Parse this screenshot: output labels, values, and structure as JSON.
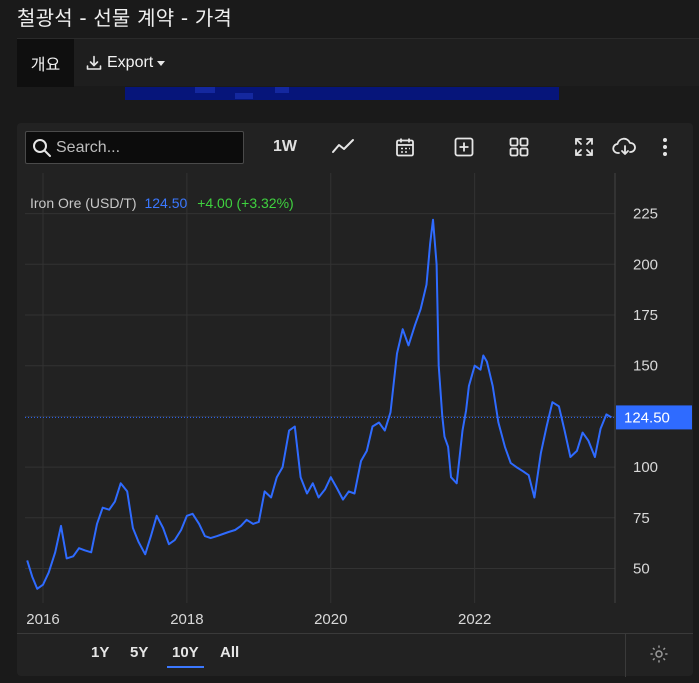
{
  "page": {
    "title": "철광석 - 선물 계약 - 가격"
  },
  "tabs": {
    "overview": "개요",
    "export": "Export"
  },
  "toolbar": {
    "search_placeholder": "Search...",
    "interval": "1W",
    "icons": [
      "search-icon",
      "line-chart-icon",
      "calendar-icon",
      "add-box-icon",
      "grid-icon",
      "fullscreen-icon",
      "cloud-download-icon",
      "more-vertical-icon"
    ]
  },
  "legend": {
    "name": "Iron Ore (USD/T)",
    "last": "124.50",
    "change": "+4.00 (+3.32%)"
  },
  "ranges": [
    "1Y",
    "5Y",
    "10Y",
    "All"
  ],
  "active_range": "10Y",
  "colors": {
    "line": "#2f6bff",
    "last_label_bg": "#2f6bff",
    "positive": "#3fd23f",
    "panel": "#222222"
  },
  "chart_data": {
    "type": "line",
    "title": "",
    "xlabel": "",
    "ylabel": "",
    "y_ticks": [
      "225",
      "200",
      "175",
      "150",
      "125",
      "100",
      "75",
      "50"
    ],
    "x_ticks": [
      "2016",
      "2018",
      "2020",
      "2022"
    ],
    "ylim": [
      33,
      245
    ],
    "xlim": [
      2015.75,
      2023.95
    ],
    "last_value_label": "124.50",
    "last_value": 124.5,
    "y_axis_position": "right",
    "grid": true,
    "series": [
      {
        "x": [
          2015.78,
          2015.85,
          2015.92,
          2016.0,
          2016.08,
          2016.17,
          2016.25,
          2016.33,
          2016.42,
          2016.5,
          2016.58,
          2016.67,
          2016.75,
          2016.83,
          2016.92,
          2017.0,
          2017.08,
          2017.17,
          2017.25,
          2017.33,
          2017.42,
          2017.5,
          2017.58,
          2017.67,
          2017.75,
          2017.83,
          2017.92,
          2018.0,
          2018.08,
          2018.17,
          2018.25,
          2018.33,
          2018.42,
          2018.5,
          2018.58,
          2018.67,
          2018.75,
          2018.83,
          2018.92,
          2019.0,
          2019.08,
          2019.17,
          2019.25,
          2019.33,
          2019.42,
          2019.5,
          2019.58,
          2019.67,
          2019.75,
          2019.83,
          2019.92,
          2020.0,
          2020.08,
          2020.17,
          2020.25,
          2020.33,
          2020.42,
          2020.5,
          2020.58,
          2020.67,
          2020.75,
          2020.83,
          2020.92,
          2021.0,
          2021.08,
          2021.17,
          2021.25,
          2021.33,
          2021.38,
          2021.42,
          2021.47,
          2021.5,
          2021.55,
          2021.58,
          2021.63,
          2021.67,
          2021.75,
          2021.83,
          2021.88,
          2021.92,
          2022.0,
          2022.08,
          2022.12,
          2022.17,
          2022.25,
          2022.33,
          2022.42,
          2022.5,
          2022.58,
          2022.67,
          2022.75,
          2022.83,
          2022.92,
          2023.0,
          2023.08,
          2023.17,
          2023.25,
          2023.33,
          2023.42,
          2023.5,
          2023.58,
          2023.67,
          2023.75,
          2023.83,
          2023.9
        ],
        "y": [
          54,
          46,
          40,
          42,
          48,
          58,
          71,
          55,
          56,
          60,
          59,
          58,
          72,
          80,
          79,
          83,
          92,
          88,
          70,
          63,
          57,
          66,
          76,
          70,
          62,
          64,
          69,
          76,
          77,
          72,
          66,
          65,
          66,
          67,
          68,
          69,
          71,
          74,
          72,
          73,
          88,
          85,
          95,
          100,
          118,
          120,
          95,
          87,
          92,
          85,
          89,
          95,
          90,
          84,
          88,
          87,
          103,
          108,
          120,
          122,
          118,
          127,
          156,
          168,
          160,
          170,
          178,
          190,
          210,
          222,
          200,
          150,
          125,
          115,
          110,
          95,
          92,
          118,
          128,
          140,
          150,
          148,
          155,
          152,
          140,
          122,
          110,
          102,
          100,
          98,
          96,
          85,
          107,
          120,
          132,
          130,
          118,
          105,
          108,
          117,
          113,
          105,
          119,
          126,
          124.5
        ]
      }
    ]
  }
}
